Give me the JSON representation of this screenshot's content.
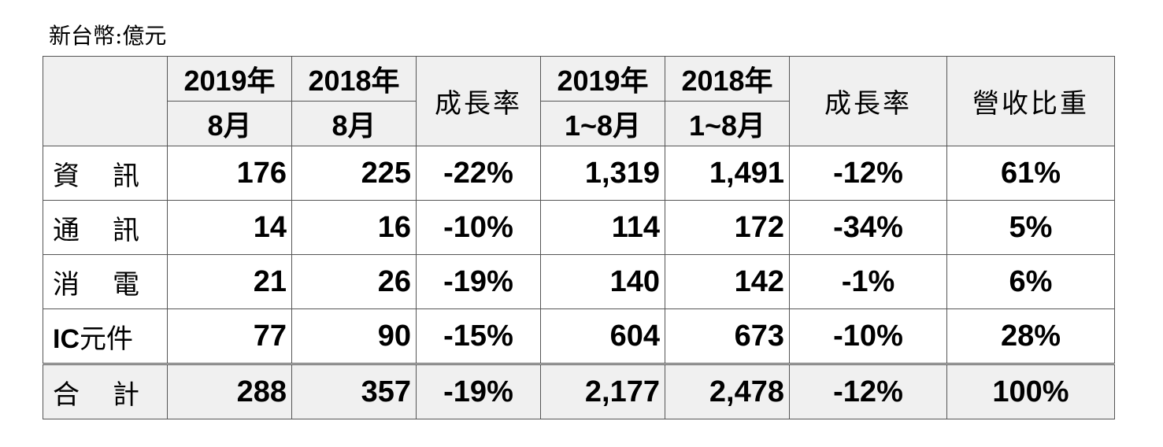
{
  "unit_label": "新台幣:億元",
  "header": {
    "col1_year": "2019年",
    "col1_period": "8月",
    "col2_year": "2018年",
    "col2_period": "8月",
    "col3": "成長率",
    "col4_year": "2019年",
    "col4_period": "1~8月",
    "col5_year": "2018年",
    "col5_period": "1~8月",
    "col6": "成長率",
    "col7": "營收比重"
  },
  "rows": [
    {
      "cat_a": "資",
      "cat_b": "訊",
      "aug2019": "176",
      "aug2018": "225",
      "aug_growth": "-22%",
      "ytd2019": "1,319",
      "ytd2018": "1,491",
      "ytd_growth": "-12%",
      "share": "61%"
    },
    {
      "cat_a": "通",
      "cat_b": "訊",
      "aug2019": "14",
      "aug2018": "16",
      "aug_growth": "-10%",
      "ytd2019": "114",
      "ytd2018": "172",
      "ytd_growth": "-34%",
      "share": "5%"
    },
    {
      "cat_a": "消",
      "cat_b": "電",
      "aug2019": "21",
      "aug2018": "26",
      "aug_growth": "-19%",
      "ytd2019": "140",
      "ytd2018": "142",
      "ytd_growth": "-1%",
      "share": "6%"
    },
    {
      "cat_ic": "IC",
      "cat_ic_rest": "元件",
      "aug2019": "77",
      "aug2018": "90",
      "aug_growth": "-15%",
      "ytd2019": "604",
      "ytd2018": "673",
      "ytd_growth": "-10%",
      "share": "28%"
    }
  ],
  "total": {
    "cat_a": "合",
    "cat_b": "計",
    "aug2019": "288",
    "aug2018": "357",
    "aug_growth": "-19%",
    "ytd2019": "2,177",
    "ytd2018": "2,478",
    "ytd_growth": "-12%",
    "share": "100%"
  }
}
